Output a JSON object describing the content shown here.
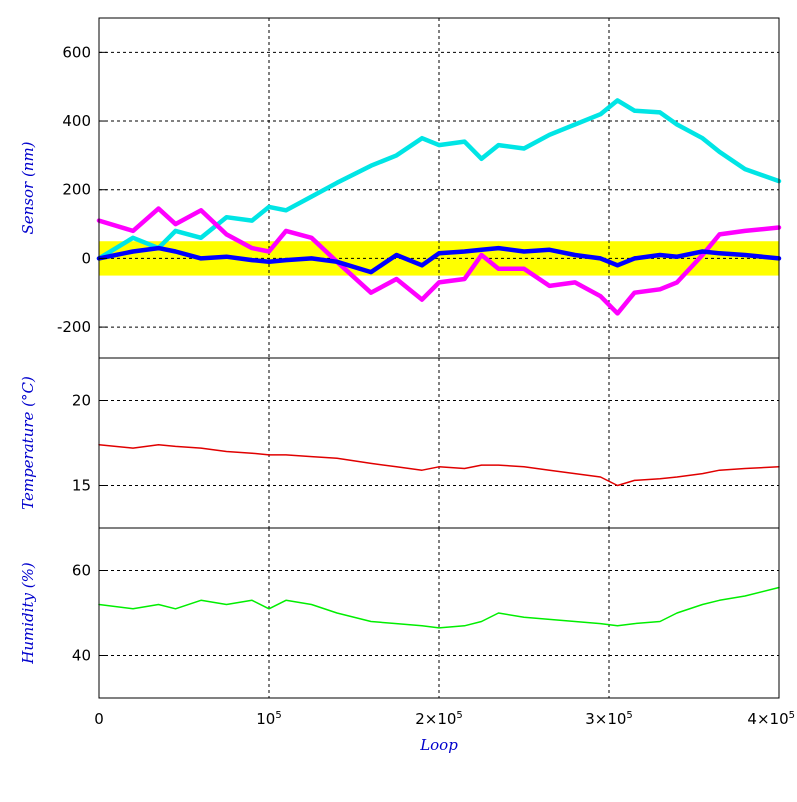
{
  "chart_data": [
    {
      "type": "line",
      "ylabel": "Sensor (nm)",
      "xlim": [
        0,
        400000
      ],
      "ylim": [
        -290,
        700
      ],
      "yticks": [
        -200,
        0,
        200,
        400,
        600
      ],
      "ytick_labels": [
        "-200",
        "0",
        "200",
        "400",
        "600"
      ],
      "grid": true,
      "band": {
        "from": -50,
        "to": 50,
        "color": "#ffff00"
      },
      "x": [
        0,
        20000,
        35000,
        45000,
        60000,
        75000,
        90000,
        100000,
        110000,
        125000,
        140000,
        160000,
        175000,
        190000,
        200000,
        215000,
        225000,
        235000,
        250000,
        265000,
        280000,
        295000,
        305000,
        315000,
        330000,
        340000,
        355000,
        365000,
        380000,
        400000
      ],
      "series": [
        {
          "color": "#00e5e5",
          "values": [
            0,
            60,
            30,
            80,
            60,
            120,
            110,
            150,
            140,
            180,
            220,
            270,
            300,
            350,
            330,
            340,
            290,
            330,
            320,
            360,
            390,
            420,
            460,
            430,
            425,
            390,
            350,
            310,
            260,
            225
          ]
        },
        {
          "color": "#ff00ff",
          "values": [
            110,
            80,
            145,
            100,
            140,
            70,
            30,
            20,
            80,
            60,
            -10,
            -100,
            -60,
            -120,
            -70,
            -60,
            10,
            -30,
            -30,
            -80,
            -70,
            -110,
            -160,
            -100,
            -90,
            -70,
            10,
            70,
            80,
            90
          ]
        },
        {
          "color": "#0000ff",
          "values": [
            0,
            20,
            30,
            20,
            0,
            5,
            -5,
            -10,
            -5,
            0,
            -10,
            -40,
            10,
            -20,
            15,
            20,
            25,
            30,
            20,
            25,
            10,
            0,
            -20,
            0,
            10,
            5,
            20,
            15,
            10,
            0
          ]
        }
      ]
    },
    {
      "type": "line",
      "ylabel": "Temperature (°C)",
      "xlim": [
        0,
        400000
      ],
      "ylim": [
        12.5,
        22.5
      ],
      "yticks": [
        15,
        20
      ],
      "ytick_labels": [
        "15",
        "20"
      ],
      "grid": true,
      "x": [
        0,
        20000,
        35000,
        45000,
        60000,
        75000,
        90000,
        100000,
        110000,
        125000,
        140000,
        160000,
        175000,
        190000,
        200000,
        215000,
        225000,
        235000,
        250000,
        265000,
        280000,
        295000,
        305000,
        315000,
        330000,
        340000,
        355000,
        365000,
        380000,
        400000
      ],
      "series": [
        {
          "color": "#e00000",
          "values": [
            17.4,
            17.2,
            17.4,
            17.3,
            17.2,
            17.0,
            16.9,
            16.8,
            16.8,
            16.7,
            16.6,
            16.3,
            16.1,
            15.9,
            16.1,
            16.0,
            16.2,
            16.2,
            16.1,
            15.9,
            15.7,
            15.5,
            15.0,
            15.3,
            15.4,
            15.5,
            15.7,
            15.9,
            16.0,
            16.1
          ]
        }
      ]
    },
    {
      "type": "line",
      "xlabel": "Loop",
      "ylabel": "Humidity (%)",
      "xlim": [
        0,
        400000
      ],
      "ylim": [
        30,
        70
      ],
      "yticks": [
        40,
        60
      ],
      "ytick_labels": [
        "40",
        "60"
      ],
      "grid": true,
      "xticks": [
        0,
        100000,
        200000,
        300000,
        400000
      ],
      "xtick_labels": [
        [
          "0",
          ""
        ],
        [
          "10",
          "5"
        ],
        [
          "2×10",
          "5"
        ],
        [
          "3×10",
          "5"
        ],
        [
          "4×10",
          "5"
        ]
      ],
      "x": [
        0,
        20000,
        35000,
        45000,
        60000,
        75000,
        90000,
        100000,
        110000,
        125000,
        140000,
        160000,
        175000,
        190000,
        200000,
        215000,
        225000,
        235000,
        250000,
        265000,
        280000,
        295000,
        305000,
        315000,
        330000,
        340000,
        355000,
        365000,
        380000,
        400000
      ],
      "series": [
        {
          "color": "#00ee00",
          "values": [
            52,
            51,
            52,
            51,
            53,
            52,
            53,
            51,
            53,
            52,
            50,
            48,
            47.5,
            47,
            46.5,
            47,
            48,
            50,
            49,
            48.5,
            48,
            47.5,
            47,
            47.5,
            48,
            50,
            52,
            53,
            54,
            56
          ]
        }
      ]
    }
  ]
}
